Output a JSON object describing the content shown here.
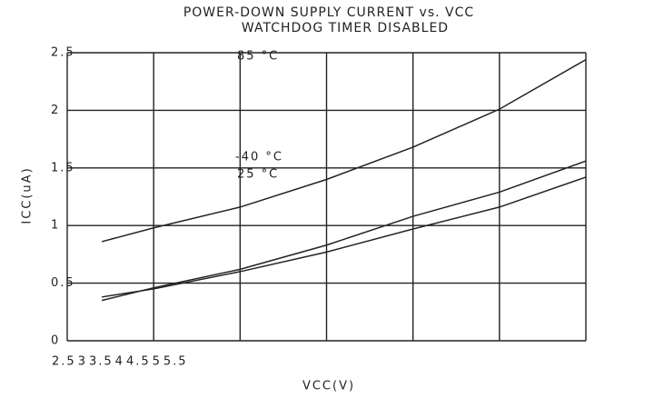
{
  "chart_data": {
    "type": "line",
    "title": "POWER-DOWN SUPPLY CURRENT vs. VCC",
    "subtitle": "WATCHDOG TIMER DISABLED",
    "x_label": "VCC(V)",
    "y_label": "ICC(uA)",
    "x": [
      2.7,
      3,
      3.5,
      4,
      4.5,
      5,
      5.5
    ],
    "series": [
      {
        "name": "85 °C",
        "color": "#222222",
        "values": [
          0.86,
          0.98,
          1.16,
          1.4,
          1.68,
          2.01,
          2.44
        ]
      },
      {
        "name": "-40 °C",
        "color": "#222222",
        "values": [
          0.35,
          0.46,
          0.62,
          0.83,
          1.08,
          1.29,
          1.56
        ]
      },
      {
        "name": "25 °C",
        "color": "#222222",
        "values": [
          0.38,
          0.45,
          0.6,
          0.77,
          0.97,
          1.16,
          1.42
        ]
      }
    ],
    "xlim": [
      2.5,
      5.5
    ],
    "xticks": [
      2.5,
      3,
      3.5,
      4,
      4.5,
      5,
      5.5
    ],
    "ylim": [
      0,
      2.5
    ],
    "yticks": [
      0,
      0.5,
      1,
      1.5,
      2,
      2.5
    ],
    "grid": true
  }
}
